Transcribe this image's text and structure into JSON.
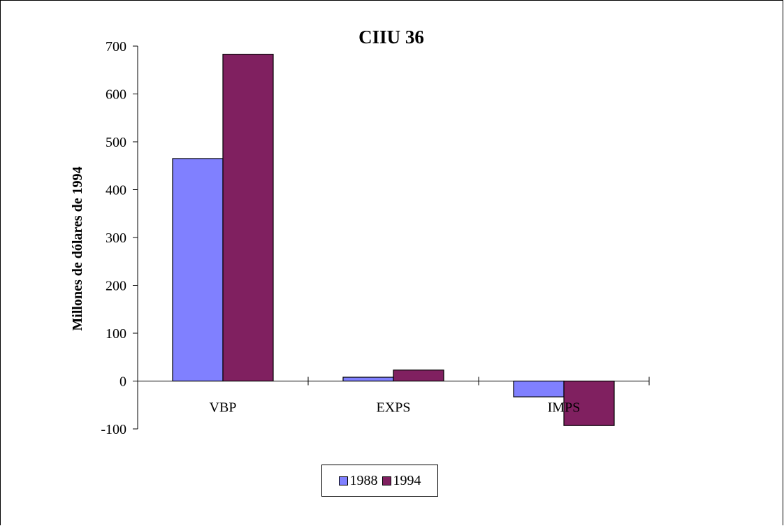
{
  "chart_data": {
    "type": "bar",
    "title": "CIIU 36",
    "xlabel": "",
    "ylabel": "Millones de dólares de 1994",
    "categories": [
      "VBP",
      "EXPS",
      "IMPS"
    ],
    "series": [
      {
        "name": "1988",
        "values": [
          465,
          8,
          -33
        ],
        "color": "#8080ff"
      },
      {
        "name": "1994",
        "values": [
          683,
          23,
          -93
        ],
        "color": "#802060"
      }
    ],
    "ylim": [
      -100,
      700
    ],
    "yticks": [
      "-100",
      "0",
      "100",
      "200",
      "300",
      "400",
      "500",
      "600",
      "700"
    ],
    "grid": false,
    "legend_position": "bottom"
  }
}
